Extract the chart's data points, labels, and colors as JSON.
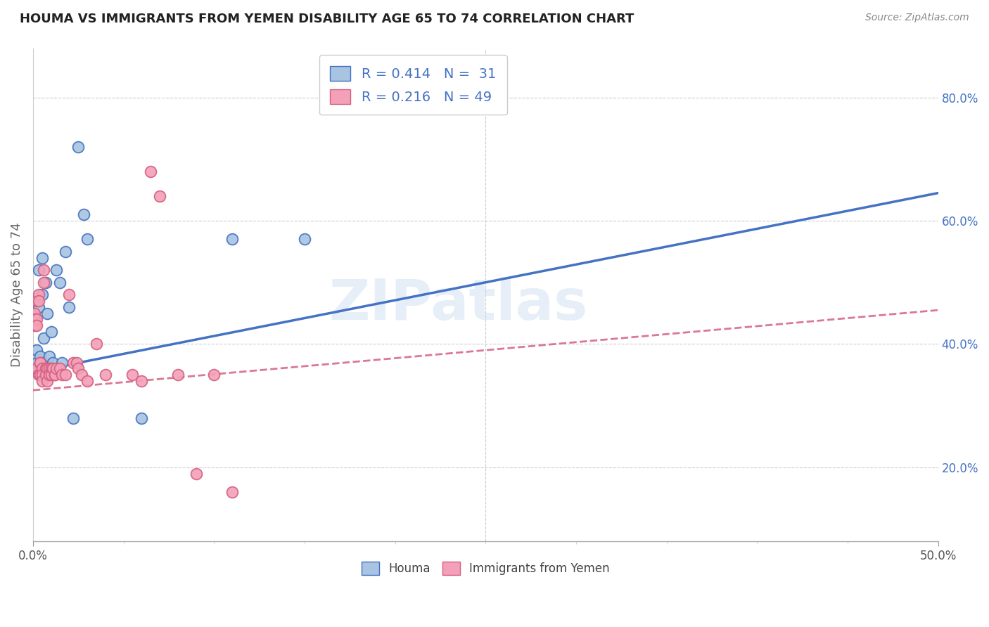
{
  "title": "HOUMA VS IMMIGRANTS FROM YEMEN DISABILITY AGE 65 TO 74 CORRELATION CHART",
  "source": "Source: ZipAtlas.com",
  "ylabel": "Disability Age 65 to 74",
  "ylabel_right_labels": [
    "20.0%",
    "40.0%",
    "60.0%",
    "80.0%"
  ],
  "ylabel_right_values": [
    0.2,
    0.4,
    0.6,
    0.8
  ],
  "xmin": 0.0,
  "xmax": 0.5,
  "ymin": 0.08,
  "ymax": 0.88,
  "watermark": "ZIPatlas",
  "legend_r1": "R = 0.414",
  "legend_n1": "N =  31",
  "legend_r2": "R = 0.216",
  "legend_n2": "N = 49",
  "color_houma_fill": "#a8c4e0",
  "color_houma_edge": "#4472c4",
  "color_yemen_fill": "#f4a0b8",
  "color_yemen_edge": "#d46080",
  "color_label_blue": "#4472c4",
  "color_grid": "#cccccc",
  "houma_x": [
    0.001,
    0.002,
    0.002,
    0.003,
    0.003,
    0.004,
    0.004,
    0.005,
    0.005,
    0.005,
    0.006,
    0.006,
    0.007,
    0.007,
    0.008,
    0.008,
    0.009,
    0.01,
    0.011,
    0.013,
    0.015,
    0.016,
    0.018,
    0.02,
    0.022,
    0.025,
    0.028,
    0.03,
    0.06,
    0.11,
    0.15
  ],
  "houma_y": [
    0.36,
    0.39,
    0.37,
    0.46,
    0.52,
    0.38,
    0.35,
    0.48,
    0.54,
    0.37,
    0.41,
    0.36,
    0.5,
    0.35,
    0.45,
    0.36,
    0.38,
    0.42,
    0.37,
    0.52,
    0.5,
    0.37,
    0.55,
    0.46,
    0.28,
    0.72,
    0.61,
    0.57,
    0.28,
    0.57,
    0.57
  ],
  "yemen_x": [
    0.001,
    0.001,
    0.001,
    0.002,
    0.002,
    0.002,
    0.002,
    0.003,
    0.003,
    0.003,
    0.004,
    0.004,
    0.004,
    0.005,
    0.005,
    0.005,
    0.006,
    0.006,
    0.007,
    0.007,
    0.008,
    0.008,
    0.009,
    0.009,
    0.01,
    0.01,
    0.011,
    0.012,
    0.012,
    0.013,
    0.015,
    0.016,
    0.018,
    0.02,
    0.022,
    0.024,
    0.025,
    0.027,
    0.03,
    0.035,
    0.04,
    0.055,
    0.06,
    0.065,
    0.07,
    0.08,
    0.09,
    0.1,
    0.11
  ],
  "yemen_y": [
    0.45,
    0.44,
    0.43,
    0.47,
    0.44,
    0.43,
    0.36,
    0.48,
    0.47,
    0.35,
    0.37,
    0.37,
    0.35,
    0.36,
    0.35,
    0.34,
    0.52,
    0.5,
    0.36,
    0.35,
    0.34,
    0.36,
    0.36,
    0.35,
    0.36,
    0.35,
    0.36,
    0.35,
    0.35,
    0.36,
    0.36,
    0.35,
    0.35,
    0.48,
    0.37,
    0.37,
    0.36,
    0.35,
    0.34,
    0.4,
    0.35,
    0.35,
    0.34,
    0.68,
    0.64,
    0.35,
    0.19,
    0.35,
    0.16
  ],
  "houma_trend_x0": 0.0,
  "houma_trend_x1": 0.5,
  "houma_trend_y0": 0.355,
  "houma_trend_y1": 0.645,
  "yemen_trend_x0": 0.0,
  "yemen_trend_x1": 0.5,
  "yemen_trend_y0": 0.325,
  "yemen_trend_y1": 0.455
}
